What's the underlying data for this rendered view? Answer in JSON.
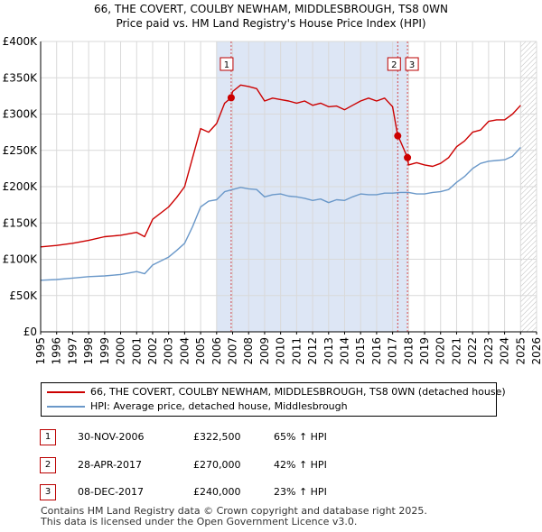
{
  "header": {
    "title_line1": "66, THE COVERT, COULBY NEWHAM, MIDDLESBROUGH, TS8 0WN",
    "title_line2": "Price paid vs. HM Land Registry's House Price Index (HPI)"
  },
  "colors": {
    "property": "#cc0000",
    "hpi": "#6a98c9",
    "grid": "#d9d9d9",
    "forecast_hatch": "#bbbbbb",
    "marker_box": "#bb0000"
  },
  "chart_data": {
    "type": "line",
    "xlim": [
      1995,
      2026
    ],
    "ylim": [
      0,
      400000
    ],
    "y_ticks": [
      {
        "value": 0,
        "label": "£0"
      },
      {
        "value": 50000,
        "label": "£50K"
      },
      {
        "value": 100000,
        "label": "£100K"
      },
      {
        "value": 150000,
        "label": "£150K"
      },
      {
        "value": 200000,
        "label": "£200K"
      },
      {
        "value": 250000,
        "label": "£250K"
      },
      {
        "value": 300000,
        "label": "£300K"
      },
      {
        "value": 350000,
        "label": "£350K"
      },
      {
        "value": 400000,
        "label": "£400K"
      }
    ],
    "x_ticks": [
      "1995",
      "1996",
      "1997",
      "1998",
      "1999",
      "2000",
      "2001",
      "2002",
      "2003",
      "2004",
      "2005",
      "2006",
      "2007",
      "2008",
      "2009",
      "2010",
      "2011",
      "2012",
      "2013",
      "2014",
      "2015",
      "2016",
      "2017",
      "2018",
      "2019",
      "2020",
      "2021",
      "2022",
      "2023",
      "2024",
      "2025",
      "2026"
    ],
    "shaded_region": [
      2006.0,
      2017.95
    ],
    "forecast_start": 2025.0,
    "series": [
      {
        "name": "property",
        "x": [
          1995,
          1996,
          1997,
          1998,
          1999,
          2000,
          2001,
          2001.5,
          2002,
          2003,
          2003.5,
          2004,
          2004.5,
          2005,
          2005.5,
          2006,
          2006.5,
          2006.91,
          2007,
          2007.5,
          2008,
          2008.5,
          2009,
          2009.5,
          2010,
          2010.5,
          2011,
          2011.5,
          2012,
          2012.5,
          2013,
          2013.5,
          2014,
          2014.5,
          2015,
          2015.5,
          2016,
          2016.5,
          2017,
          2017.32,
          2017.5,
          2017.93,
          2018,
          2018.5,
          2019,
          2019.5,
          2020,
          2020.5,
          2021,
          2021.5,
          2022,
          2022.5,
          2023,
          2023.5,
          2024,
          2024.5,
          2025.0
        ],
        "values": [
          117000,
          119000,
          122000,
          126000,
          131000,
          133000,
          137000,
          131000,
          155000,
          172000,
          185000,
          200000,
          240000,
          280000,
          275000,
          287000,
          315000,
          322500,
          331000,
          340000,
          338000,
          335000,
          318000,
          322000,
          320000,
          318000,
          315000,
          318000,
          312000,
          315000,
          310000,
          311000,
          306000,
          312000,
          318000,
          322000,
          318000,
          322000,
          310000,
          270000,
          262000,
          240000,
          230000,
          233000,
          230000,
          228000,
          232000,
          240000,
          255000,
          263000,
          275000,
          278000,
          290000,
          292000,
          292000,
          300000,
          312000
        ]
      },
      {
        "name": "hpi",
        "x": [
          1995,
          1996,
          1997,
          1998,
          1999,
          2000,
          2001,
          2001.5,
          2002,
          2003,
          2003.5,
          2004,
          2004.5,
          2005,
          2005.5,
          2006,
          2006.5,
          2007,
          2007.5,
          2008,
          2008.5,
          2009,
          2009.5,
          2010,
          2010.5,
          2011,
          2011.5,
          2012,
          2012.5,
          2013,
          2013.5,
          2014,
          2014.5,
          2015,
          2015.5,
          2016,
          2016.5,
          2017,
          2017.5,
          2018,
          2018.5,
          2019,
          2019.5,
          2020,
          2020.5,
          2021,
          2021.5,
          2022,
          2022.5,
          2023,
          2023.5,
          2024,
          2024.5,
          2025.0
        ],
        "values": [
          71000,
          72000,
          74000,
          76000,
          77000,
          79000,
          83000,
          80000,
          92000,
          103000,
          112000,
          122000,
          145000,
          172000,
          180000,
          182000,
          193000,
          196000,
          199000,
          197000,
          196000,
          186000,
          189000,
          190000,
          187000,
          186000,
          184000,
          181000,
          183000,
          178000,
          182000,
          181000,
          186000,
          190000,
          189000,
          189000,
          191000,
          191000,
          192000,
          192000,
          190000,
          190000,
          192000,
          193000,
          196000,
          206000,
          214000,
          225000,
          232000,
          235000,
          236000,
          237000,
          242000,
          254000
        ]
      }
    ],
    "sales": [
      {
        "label": "1",
        "x": 2006.91,
        "value": 322500
      },
      {
        "label": "2",
        "x": 2017.32,
        "value": 270000
      },
      {
        "label": "3",
        "x": 2017.93,
        "value": 240000
      }
    ]
  },
  "legend": {
    "property_label": "66, THE COVERT, COULBY NEWHAM, MIDDLESBROUGH, TS8 0WN (detached house)",
    "hpi_label": "HPI: Average price, detached house, Middlesbrough"
  },
  "sales_table": [
    {
      "num": "1",
      "date": "30-NOV-2006",
      "price": "£322,500",
      "hpi": "65% ↑ HPI"
    },
    {
      "num": "2",
      "date": "28-APR-2017",
      "price": "£270,000",
      "hpi": "42% ↑ HPI"
    },
    {
      "num": "3",
      "date": "08-DEC-2017",
      "price": "£240,000",
      "hpi": "23% ↑ HPI"
    }
  ],
  "footer": {
    "line1": "Contains HM Land Registry data © Crown copyright and database right 2025.",
    "line2": "This data is licensed under the Open Government Licence v3.0."
  }
}
